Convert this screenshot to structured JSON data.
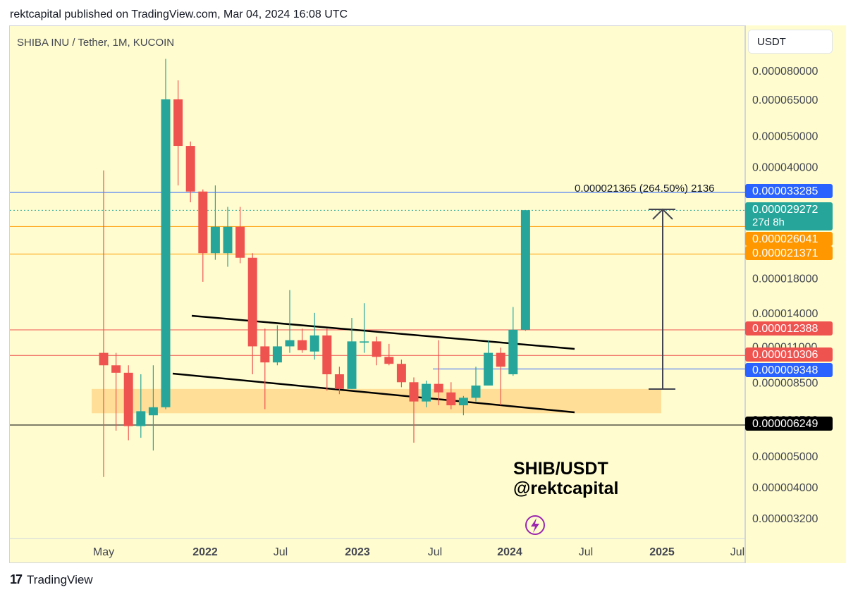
{
  "header": "rektcapital published on TradingView.com, Mar 04, 2024 16:08 UTC",
  "symbol_title": "SHIBA INU / Tether, 1M, KUCOIN",
  "currency_button": "USDT",
  "watermark_line1": "SHIB/USDT",
  "watermark_line2": "@rektcapital",
  "footer_brand": "TradingView",
  "chart_data": {
    "type": "candlestick",
    "y_scale": "log",
    "y_ticks": [
      "0.000080000",
      "0.000065000",
      "0.000050000",
      "0.000040000",
      "0.000018000",
      "0.000014000",
      "0.000011000",
      "0.000008500",
      "0.000006500",
      "0.000005000",
      "0.000004000",
      "0.000003200"
    ],
    "x_ticks": [
      "May",
      "2022",
      "Jul",
      "2023",
      "Jul",
      "2024",
      "Jul",
      "2025",
      "Jul"
    ],
    "measure_label": "0.000021365 (264.50%) 2136",
    "price_labels": [
      {
        "text": "0.000033285",
        "color": "#2962ff"
      },
      {
        "text": "0.000029272",
        "sub": "27d 8h",
        "color": "#26a69a"
      },
      {
        "text": "0.000026041",
        "color": "#ff9800"
      },
      {
        "text": "0.000021371",
        "color": "#ff9800"
      },
      {
        "text": "0.000012388",
        "color": "#ef5350"
      },
      {
        "text": "0.000010306",
        "color": "#ef5350"
      },
      {
        "text": "0.000009348",
        "color": "#2962ff"
      },
      {
        "text": "0.000006249",
        "color": "#000000"
      }
    ],
    "candles": [
      {
        "date": "2021-05",
        "o": 1.05e-05,
        "h": 3.9e-05,
        "l": 4.3e-06,
        "c": 9.6e-06
      },
      {
        "date": "2021-06",
        "o": 9.6e-06,
        "h": 1.05e-05,
        "l": 6e-06,
        "c": 9.1e-06
      },
      {
        "date": "2021-07",
        "o": 9.1e-06,
        "h": 9.6e-06,
        "l": 5.6e-06,
        "c": 6.2e-06
      },
      {
        "date": "2021-08",
        "o": 6.2e-06,
        "h": 9e-06,
        "l": 5.7e-06,
        "c": 6.9e-06
      },
      {
        "date": "2021-09",
        "o": 6.7e-06,
        "h": 9.6e-06,
        "l": 5.2e-06,
        "c": 7.1e-06
      },
      {
        "date": "2021-10",
        "o": 7.1e-06,
        "h": 8.7e-05,
        "l": 7e-06,
        "c": 6.5e-05
      },
      {
        "date": "2021-11",
        "o": 6.5e-05,
        "h": 7.45e-05,
        "l": 3.5e-05,
        "c": 4.65e-05
      },
      {
        "date": "2021-12",
        "o": 4.65e-05,
        "h": 4.8e-05,
        "l": 3.1e-05,
        "c": 3.35e-05
      },
      {
        "date": "2022-01",
        "o": 3.35e-05,
        "h": 3.4e-05,
        "l": 1.75e-05,
        "c": 2.15e-05
      },
      {
        "date": "2022-02",
        "o": 2.15e-05,
        "h": 3.5e-05,
        "l": 2.05e-05,
        "c": 2.6e-05
      },
      {
        "date": "2022-03",
        "o": 2.15e-05,
        "h": 3e-05,
        "l": 1.95e-05,
        "c": 2.6e-05
      },
      {
        "date": "2022-04",
        "o": 2.6e-05,
        "h": 3e-05,
        "l": 2e-05,
        "c": 2.08e-05
      },
      {
        "date": "2022-05",
        "o": 2.08e-05,
        "h": 2.15e-05,
        "l": 9e-06,
        "c": 1.1e-05
      },
      {
        "date": "2022-06",
        "o": 1.1e-05,
        "h": 1.25e-05,
        "l": 7e-06,
        "c": 9.8e-06
      },
      {
        "date": "2022-07",
        "o": 9.8e-06,
        "h": 1.28e-05,
        "l": 9.6e-06,
        "c": 1.1e-05
      },
      {
        "date": "2022-08",
        "o": 1.1e-05,
        "h": 1.65e-05,
        "l": 1.05e-05,
        "c": 1.15e-05
      },
      {
        "date": "2022-09",
        "o": 1.15e-05,
        "h": 1.25e-05,
        "l": 1.05e-05,
        "c": 1.07e-05
      },
      {
        "date": "2022-10",
        "o": 1.06e-05,
        "h": 1.4e-05,
        "l": 1e-05,
        "c": 1.19e-05
      },
      {
        "date": "2022-11",
        "o": 1.19e-05,
        "h": 1.25e-05,
        "l": 8e-06,
        "c": 9e-06
      },
      {
        "date": "2022-12",
        "o": 9e-06,
        "h": 9.5e-06,
        "l": 7.8e-06,
        "c": 8.1e-06
      },
      {
        "date": "2023-01",
        "o": 8.1e-06,
        "h": 1.35e-05,
        "l": 8.1e-06,
        "c": 1.14e-05
      },
      {
        "date": "2023-02",
        "o": 1.13e-05,
        "h": 1.5e-05,
        "l": 1.05e-05,
        "c": 1.14e-05
      },
      {
        "date": "2023-03",
        "o": 1.14e-05,
        "h": 1.18e-05,
        "l": 9.6e-06,
        "c": 1.02e-05
      },
      {
        "date": "2023-04",
        "o": 1.02e-05,
        "h": 1.12e-05,
        "l": 9.6e-06,
        "c": 9.7e-06
      },
      {
        "date": "2023-05",
        "o": 9.7e-06,
        "h": 1e-05,
        "l": 8.2e-06,
        "c": 8.5e-06
      },
      {
        "date": "2023-06",
        "o": 8.5e-06,
        "h": 8.8e-06,
        "l": 5.5e-06,
        "c": 7.4e-06
      },
      {
        "date": "2023-07",
        "o": 7.4e-06,
        "h": 8.6e-06,
        "l": 7.1e-06,
        "c": 8.4e-06
      },
      {
        "date": "2023-08",
        "o": 8.4e-06,
        "h": 1.15e-05,
        "l": 7.2e-06,
        "c": 7.9e-06
      },
      {
        "date": "2023-09",
        "o": 7.9e-06,
        "h": 8.5e-06,
        "l": 7e-06,
        "c": 7.2e-06
      },
      {
        "date": "2023-10",
        "o": 7.2e-06,
        "h": 7.7e-06,
        "l": 6.7e-06,
        "c": 7.6e-06
      },
      {
        "date": "2023-11",
        "o": 7.6e-06,
        "h": 9.5e-06,
        "l": 7.4e-06,
        "c": 8.3e-06
      },
      {
        "date": "2023-12",
        "o": 8.3e-06,
        "h": 1.15e-05,
        "l": 8.3e-06,
        "c": 1.05e-05
      },
      {
        "date": "2024-01",
        "o": 1.05e-05,
        "h": 1.09e-05,
        "l": 7.2e-06,
        "c": 9.5e-06
      },
      {
        "date": "2024-02",
        "o": 9e-06,
        "h": 1.46e-05,
        "l": 8.9e-06,
        "c": 1.24e-05
      },
      {
        "date": "2024-03",
        "o": 1.24e-05,
        "h": 2.93e-05,
        "l": 1.23e-05,
        "c": 2.93e-05
      }
    ]
  }
}
